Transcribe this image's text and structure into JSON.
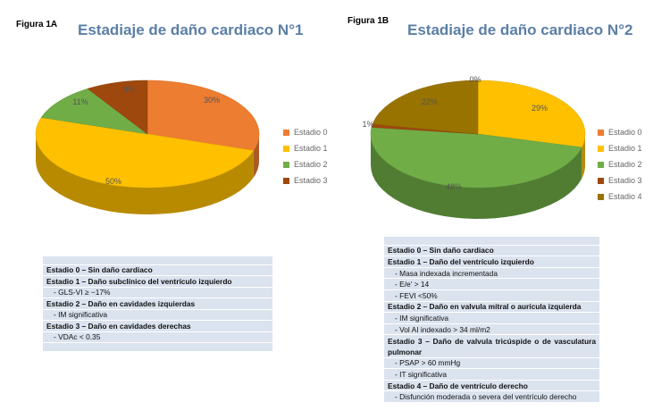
{
  "chart_data": [
    {
      "type": "pie",
      "figure_label": "Figura 1A",
      "title": "Estadiaje de daño cardiaco N°1",
      "categories": [
        "Estadio 0",
        "Estadio 1",
        "Estadio 2",
        "Estadio 3"
      ],
      "values": [
        30,
        50,
        11,
        9
      ],
      "data_labels": [
        "30%",
        "50%",
        "11%",
        "9%"
      ],
      "colors": [
        "#ED7D31",
        "#FFC000",
        "#70AD47",
        "#9E480E"
      ],
      "style": "3d",
      "legend_position": "right"
    },
    {
      "type": "pie",
      "figure_label": "Figura 1B",
      "title": "Estadiaje de daño cardiaco N°2",
      "categories": [
        "Estadio 0",
        "Estadio 1",
        "Estadio 2",
        "Estadio 3",
        "Estadio 4"
      ],
      "values": [
        0,
        29,
        48,
        1,
        22
      ],
      "data_labels": [
        "0%",
        "29%",
        "48%",
        "1%",
        "22%"
      ],
      "colors": [
        "#ED7D31",
        "#FFC000",
        "#70AD47",
        "#9E480E",
        "#997300"
      ],
      "style": "3d",
      "legend_position": "right"
    }
  ],
  "table_a": {
    "rows": [
      {
        "text": "",
        "kind": "blank"
      },
      {
        "text": "Estadio 0 – Sin daño cardiaco",
        "kind": "head"
      },
      {
        "text": "Estadio 1 – Daño subclínico del ventrículo izquierdo",
        "kind": "head"
      },
      {
        "text": "- GLS-VI ≥ −17%",
        "kind": "sub"
      },
      {
        "text": "Estadio 2 – Daño en cavidades izquierdas",
        "kind": "head"
      },
      {
        "text": "- IM significativa",
        "kind": "sub"
      },
      {
        "text": "Estadio 3 – Daño en cavidades derechas",
        "kind": "head"
      },
      {
        "text": "- VDAc < 0.35",
        "kind": "sub"
      },
      {
        "text": "",
        "kind": "blank"
      }
    ]
  },
  "table_b": {
    "rows": [
      {
        "text": "",
        "kind": "blank"
      },
      {
        "text": "Estadio 0 – Sin daño cardiaco",
        "kind": "head"
      },
      {
        "text": "Estadio 1 – Daño del ventrículo izquierdo",
        "kind": "head"
      },
      {
        "text": "- Masa indexada incrementada",
        "kind": "sub"
      },
      {
        "text": "- E/e' > 14",
        "kind": "sub"
      },
      {
        "text": "- FEVI <50%",
        "kind": "sub"
      },
      {
        "text": "Estadio 2 – Daño en valvula mitral o aurícula izquierda",
        "kind": "head"
      },
      {
        "text": "- IM significativa",
        "kind": "sub"
      },
      {
        "text": "- Vol AI indexado > 34 ml/m2",
        "kind": "sub"
      },
      {
        "text": "Estadio 3 – Daño de valvula tricúspide o de vasculatura pulmonar",
        "kind": "head wrap"
      },
      {
        "text": "- PSAP > 60 mmHg",
        "kind": "sub"
      },
      {
        "text": "- IT significativa",
        "kind": "sub"
      },
      {
        "text": "Estadio 4 – Daño de ventrículo derecho",
        "kind": "head"
      },
      {
        "text": "- Disfunción moderada o severa del ventrículo derecho",
        "kind": "sub"
      }
    ]
  }
}
